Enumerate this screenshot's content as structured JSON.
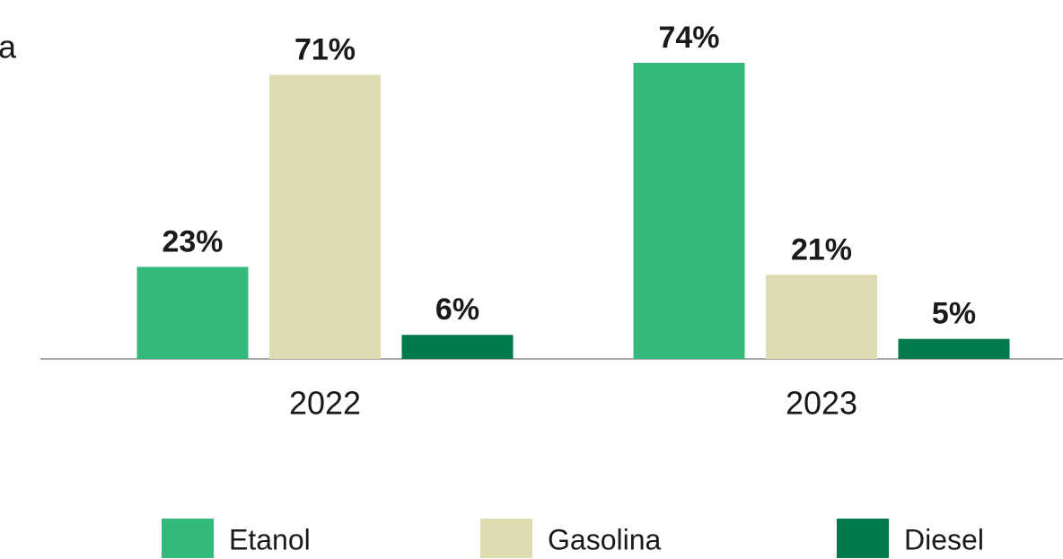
{
  "chart_data": {
    "type": "bar",
    "annotation": "a",
    "categories": [
      "2022",
      "2023"
    ],
    "series": [
      {
        "name": "Etanol",
        "color": "#34b97b",
        "values": [
          23,
          74
        ],
        "value_labels": [
          "23%",
          "74%"
        ]
      },
      {
        "name": "Gasolina",
        "color": "#dedbb1",
        "values": [
          71,
          21
        ],
        "value_labels": [
          "71%",
          "21%"
        ]
      },
      {
        "name": "Diesel",
        "color": "#007a4a",
        "values": [
          6,
          5
        ],
        "value_labels": [
          "6%",
          "5%"
        ]
      }
    ]
  }
}
